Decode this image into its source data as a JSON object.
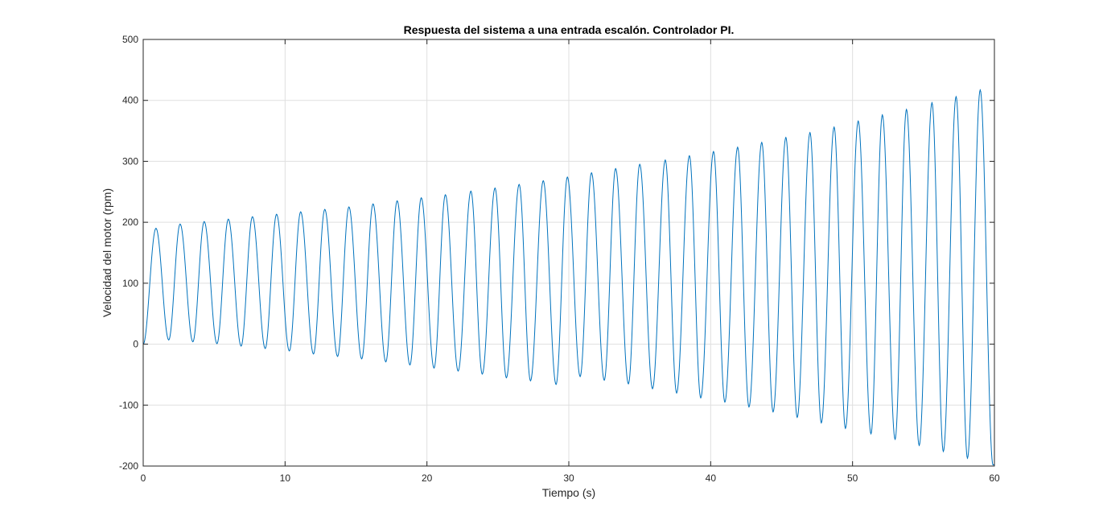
{
  "chart_data": {
    "type": "line",
    "title": "Respuesta del sistema a una entrada escalón. Controlador PI.",
    "xlabel": "Tiempo (s)",
    "ylabel": "Velocidad del motor (rpm)",
    "xlim": [
      0,
      60
    ],
    "ylim": [
      -200,
      500
    ],
    "xticks": [
      0,
      10,
      20,
      30,
      40,
      50,
      60
    ],
    "yticks": [
      -200,
      -100,
      0,
      100,
      200,
      300,
      400,
      500
    ],
    "xtick_labels": [
      "0",
      "10",
      "20",
      "30",
      "40",
      "50",
      "60"
    ],
    "ytick_labels": [
      "-200",
      "-100",
      "0",
      "100",
      "200",
      "300",
      "400",
      "500"
    ],
    "grid": true,
    "series_color": "#0072BD",
    "series": [
      {
        "peaks": [
          {
            "x": 0.9,
            "y": 190
          },
          {
            "x": 2.6,
            "y": 197
          },
          {
            "x": 4.3,
            "y": 201
          },
          {
            "x": 6.0,
            "y": 205
          },
          {
            "x": 7.7,
            "y": 209
          },
          {
            "x": 9.4,
            "y": 213
          },
          {
            "x": 11.1,
            "y": 217
          },
          {
            "x": 12.8,
            "y": 221
          },
          {
            "x": 14.5,
            "y": 225
          },
          {
            "x": 16.2,
            "y": 230
          },
          {
            "x": 17.9,
            "y": 235
          },
          {
            "x": 19.6,
            "y": 240
          },
          {
            "x": 21.3,
            "y": 245
          },
          {
            "x": 23.1,
            "y": 251
          },
          {
            "x": 24.8,
            "y": 256
          },
          {
            "x": 26.5,
            "y": 262
          },
          {
            "x": 28.2,
            "y": 268
          },
          {
            "x": 29.9,
            "y": 274
          },
          {
            "x": 31.6,
            "y": 281
          },
          {
            "x": 33.3,
            "y": 288
          },
          {
            "x": 35.0,
            "y": 295
          },
          {
            "x": 36.8,
            "y": 302
          },
          {
            "x": 38.5,
            "y": 309
          },
          {
            "x": 40.2,
            "y": 316
          },
          {
            "x": 41.9,
            "y": 323
          },
          {
            "x": 43.6,
            "y": 331
          },
          {
            "x": 45.3,
            "y": 339
          },
          {
            "x": 47.0,
            "y": 347
          },
          {
            "x": 48.7,
            "y": 356
          },
          {
            "x": 50.4,
            "y": 366
          },
          {
            "x": 52.1,
            "y": 376
          },
          {
            "x": 53.8,
            "y": 385
          },
          {
            "x": 55.6,
            "y": 396
          },
          {
            "x": 57.3,
            "y": 406
          },
          {
            "x": 59.0,
            "y": 417
          }
        ],
        "troughs": [
          {
            "x": 1.8,
            "y": 7
          },
          {
            "x": 3.5,
            "y": 4
          },
          {
            "x": 5.2,
            "y": 1
          },
          {
            "x": 6.9,
            "y": -3
          },
          {
            "x": 8.6,
            "y": -7
          },
          {
            "x": 10.3,
            "y": -11
          },
          {
            "x": 12.0,
            "y": -16
          },
          {
            "x": 13.7,
            "y": -20
          },
          {
            "x": 15.4,
            "y": -24
          },
          {
            "x": 17.1,
            "y": -29
          },
          {
            "x": 18.8,
            "y": -34
          },
          {
            "x": 20.5,
            "y": -39
          },
          {
            "x": 22.2,
            "y": -44
          },
          {
            "x": 23.9,
            "y": -49
          },
          {
            "x": 25.6,
            "y": -55
          },
          {
            "x": 27.3,
            "y": -60
          },
          {
            "x": 29.1,
            "y": -66
          },
          {
            "x": 30.8,
            "y": -53
          },
          {
            "x": 32.5,
            "y": -59
          },
          {
            "x": 34.2,
            "y": -65
          },
          {
            "x": 35.9,
            "y": -73
          },
          {
            "x": 37.6,
            "y": -80
          },
          {
            "x": 39.3,
            "y": -88
          },
          {
            "x": 41.0,
            "y": -95
          },
          {
            "x": 42.7,
            "y": -103
          },
          {
            "x": 44.4,
            "y": -111
          },
          {
            "x": 46.1,
            "y": -120
          },
          {
            "x": 47.8,
            "y": -129
          },
          {
            "x": 49.5,
            "y": -138
          },
          {
            "x": 51.3,
            "y": -147
          },
          {
            "x": 53.0,
            "y": -156
          },
          {
            "x": 54.7,
            "y": -166
          },
          {
            "x": 56.4,
            "y": -176
          },
          {
            "x": 58.1,
            "y": -187
          },
          {
            "x": 59.9,
            "y": -198
          }
        ]
      }
    ]
  }
}
